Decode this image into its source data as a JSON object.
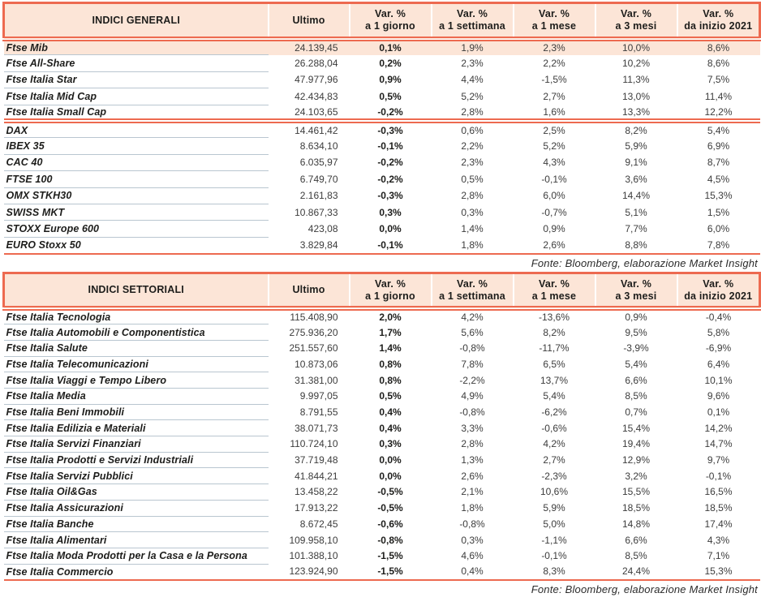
{
  "colors": {
    "accent_red": "#ed6a50",
    "header_bg": "#fce5d7",
    "highlight_row_bg": "#fce5d7",
    "row_divider": "#b9c6d0"
  },
  "tables": [
    {
      "title": "INDICI GENERALI",
      "ultimo_label": "Ultimo",
      "var_columns": [
        {
          "line1": "Var. %",
          "line2": "a 1 giorno"
        },
        {
          "line1": "Var. %",
          "line2": "a 1 settimana"
        },
        {
          "line1": "Var. %",
          "line2": "a 1 mese"
        },
        {
          "line1": "Var. %",
          "line2": "a 3 mesi"
        },
        {
          "line1": "Var. %",
          "line2": "da inizio 2021"
        }
      ],
      "groups": [
        {
          "rows": [
            {
              "name": "Ftse Mib",
              "ultimo": "24.139,45",
              "vars": [
                "0,1%",
                "1,9%",
                "2,3%",
                "10,0%",
                "8,6%"
              ],
              "highlight": true
            },
            {
              "name": "Ftse All-Share",
              "ultimo": "26.288,04",
              "vars": [
                "0,2%",
                "2,3%",
                "2,2%",
                "10,2%",
                "8,6%"
              ]
            },
            {
              "name": "Ftse Italia Star",
              "ultimo": "47.977,96",
              "vars": [
                "0,9%",
                "4,4%",
                "-1,5%",
                "11,3%",
                "7,5%"
              ]
            },
            {
              "name": "Ftse Italia Mid Cap",
              "ultimo": "42.434,83",
              "vars": [
                "0,5%",
                "5,2%",
                "2,7%",
                "13,0%",
                "11,4%"
              ]
            },
            {
              "name": "Ftse Italia Small Cap",
              "ultimo": "24.103,65",
              "vars": [
                "-0,2%",
                "2,8%",
                "1,6%",
                "13,3%",
                "12,2%"
              ]
            }
          ]
        },
        {
          "rows": [
            {
              "name": "DAX",
              "ultimo": "14.461,42",
              "vars": [
                "-0,3%",
                "0,6%",
                "2,5%",
                "8,2%",
                "5,4%"
              ]
            },
            {
              "name": "IBEX 35",
              "ultimo": "8.634,10",
              "vars": [
                "-0,1%",
                "2,2%",
                "5,2%",
                "5,9%",
                "6,9%"
              ]
            },
            {
              "name": "CAC 40",
              "ultimo": "6.035,97",
              "vars": [
                "-0,2%",
                "2,3%",
                "4,3%",
                "9,1%",
                "8,7%"
              ]
            },
            {
              "name": "FTSE 100",
              "ultimo": "6.749,70",
              "vars": [
                "-0,2%",
                "0,5%",
                "-0,1%",
                "3,6%",
                "4,5%"
              ]
            },
            {
              "name": "OMX STKH30",
              "ultimo": "2.161,83",
              "vars": [
                "-0,3%",
                "2,8%",
                "6,0%",
                "14,4%",
                "15,3%"
              ]
            },
            {
              "name": "SWISS MKT",
              "ultimo": "10.867,33",
              "vars": [
                "0,3%",
                "0,3%",
                "-0,7%",
                "5,1%",
                "1,5%"
              ]
            },
            {
              "name": "STOXX Europe 600",
              "ultimo": "423,08",
              "vars": [
                "0,0%",
                "1,4%",
                "0,9%",
                "7,7%",
                "6,0%"
              ]
            },
            {
              "name": "EURO Stoxx 50",
              "ultimo": "3.829,84",
              "vars": [
                "-0,1%",
                "1,8%",
                "2,6%",
                "8,8%",
                "7,8%"
              ]
            }
          ]
        }
      ],
      "fonte": "Fonte: Bloomberg, elaborazione Market Insight"
    },
    {
      "title": "INDICI SETTORIALI",
      "ultimo_label": "Ultimo",
      "var_columns": [
        {
          "line1": "Var. %",
          "line2": "a 1 giorno"
        },
        {
          "line1": "Var. %",
          "line2": "a 1 settimana"
        },
        {
          "line1": "Var. %",
          "line2": "a 1 mese"
        },
        {
          "line1": "Var. %",
          "line2": "a 3 mesi"
        },
        {
          "line1": "Var. %",
          "line2": "da inizio 2021"
        }
      ],
      "groups": [
        {
          "rows": [
            {
              "name": "Ftse Italia Tecnologia",
              "ultimo": "115.408,90",
              "vars": [
                "2,0%",
                "4,2%",
                "-13,6%",
                "0,9%",
                "-0,4%"
              ]
            },
            {
              "name": "Ftse Italia Automobili e Componentistica",
              "ultimo": "275.936,20",
              "vars": [
                "1,7%",
                "5,6%",
                "8,2%",
                "9,5%",
                "5,8%"
              ]
            },
            {
              "name": "Ftse Italia Salute",
              "ultimo": "251.557,60",
              "vars": [
                "1,4%",
                "-0,8%",
                "-11,7%",
                "-3,9%",
                "-6,9%"
              ]
            },
            {
              "name": "Ftse Italia Telecomunicazioni",
              "ultimo": "10.873,06",
              "vars": [
                "0,8%",
                "7,8%",
                "6,5%",
                "5,4%",
                "6,4%"
              ]
            },
            {
              "name": "Ftse Italia Viaggi e Tempo Libero",
              "ultimo": "31.381,00",
              "vars": [
                "0,8%",
                "-2,2%",
                "13,7%",
                "6,6%",
                "10,1%"
              ]
            },
            {
              "name": "Ftse Italia Media",
              "ultimo": "9.997,05",
              "vars": [
                "0,5%",
                "4,9%",
                "5,4%",
                "8,5%",
                "9,6%"
              ]
            },
            {
              "name": "Ftse Italia Beni Immobili",
              "ultimo": "8.791,55",
              "vars": [
                "0,4%",
                "-0,8%",
                "-6,2%",
                "0,7%",
                "0,1%"
              ]
            },
            {
              "name": "Ftse Italia Edilizia e Materiali",
              "ultimo": "38.071,73",
              "vars": [
                "0,4%",
                "3,3%",
                "-0,6%",
                "15,4%",
                "14,2%"
              ]
            },
            {
              "name": "Ftse Italia Servizi Finanziari",
              "ultimo": "110.724,10",
              "vars": [
                "0,3%",
                "2,8%",
                "4,2%",
                "19,4%",
                "14,7%"
              ]
            },
            {
              "name": "Ftse Italia Prodotti e Servizi Industriali",
              "ultimo": "37.719,48",
              "vars": [
                "0,0%",
                "1,3%",
                "2,7%",
                "12,9%",
                "9,7%"
              ]
            },
            {
              "name": "Ftse Italia Servizi Pubblici",
              "ultimo": "41.844,21",
              "vars": [
                "0,0%",
                "2,6%",
                "-2,3%",
                "3,2%",
                "-0,1%"
              ]
            },
            {
              "name": "Ftse Italia Oil&Gas",
              "ultimo": "13.458,22",
              "vars": [
                "-0,5%",
                "2,1%",
                "10,6%",
                "15,5%",
                "16,5%"
              ]
            },
            {
              "name": "Ftse Italia Assicurazioni",
              "ultimo": "17.913,22",
              "vars": [
                "-0,5%",
                "1,8%",
                "5,9%",
                "18,5%",
                "18,5%"
              ]
            },
            {
              "name": "Ftse Italia Banche",
              "ultimo": "8.672,45",
              "vars": [
                "-0,6%",
                "-0,8%",
                "5,0%",
                "14,8%",
                "17,4%"
              ]
            },
            {
              "name": "Ftse Italia Alimentari",
              "ultimo": "109.958,10",
              "vars": [
                "-0,8%",
                "0,3%",
                "-1,1%",
                "6,6%",
                "4,3%"
              ]
            },
            {
              "name": "Ftse Italia Moda Prodotti per la Casa e la Persona",
              "ultimo": "101.388,10",
              "vars": [
                "-1,5%",
                "4,6%",
                "-0,1%",
                "8,5%",
                "7,1%"
              ]
            },
            {
              "name": "Ftse Italia Commercio",
              "ultimo": "123.924,90",
              "vars": [
                "-1,5%",
                "0,4%",
                "8,3%",
                "24,4%",
                "15,3%"
              ]
            }
          ]
        }
      ],
      "fonte": "Fonte: Bloomberg, elaborazione Market Insight"
    }
  ]
}
